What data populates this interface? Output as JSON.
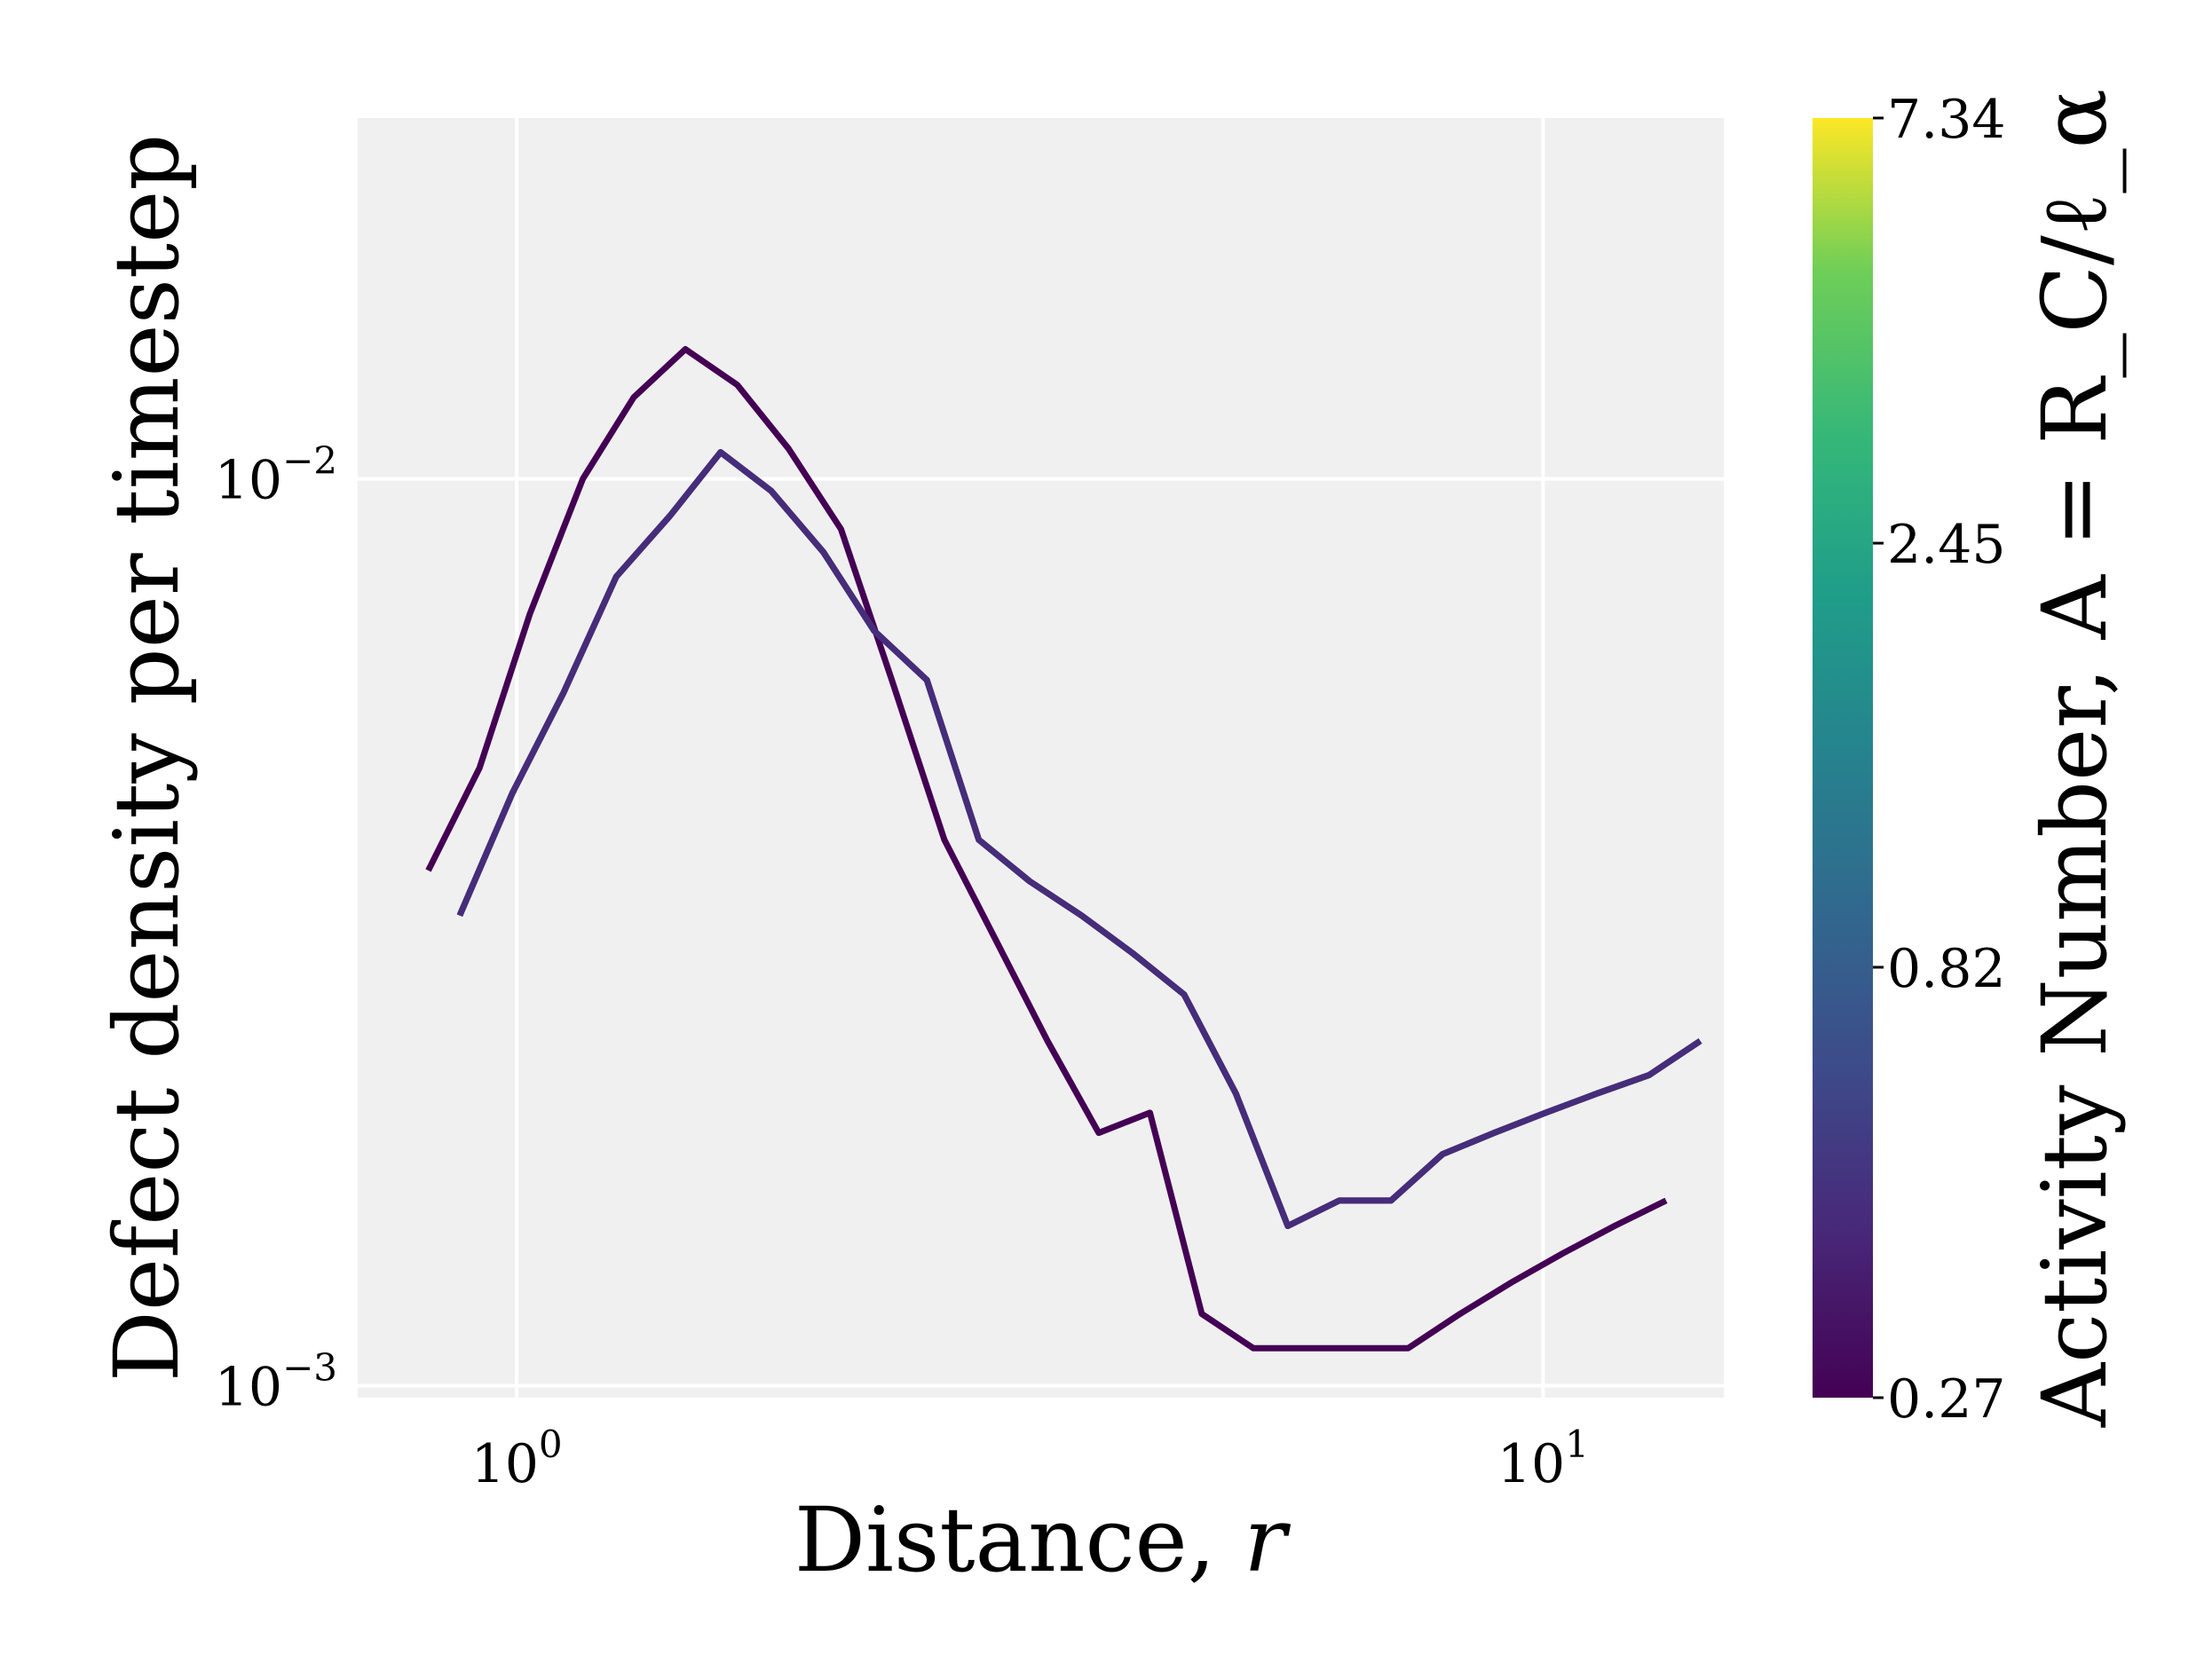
{
  "chart_data": {
    "type": "line",
    "xlabel": "Distance, r",
    "ylabel": "Defect density per timestep",
    "xscale": "log",
    "yscale": "log",
    "xlim": [
      0.7,
      15.0
    ],
    "ylim": [
      0.00097,
      0.025
    ],
    "grid": true,
    "x_ticks": [
      {
        "value": 1,
        "base": "10",
        "exp": "0"
      },
      {
        "value": 10,
        "base": "10",
        "exp": "1"
      }
    ],
    "y_ticks": [
      {
        "value": 0.001,
        "base": "10",
        "exp": "−3"
      },
      {
        "value": 0.01,
        "base": "10",
        "exp": "−2"
      }
    ],
    "colorbar": {
      "label": "Activity Number, A = R_C/ℓ_α",
      "min": 0.27,
      "max": 7.34,
      "scale": "log",
      "ticks": [
        "7.34",
        "2.45",
        "0.82",
        "0.27"
      ],
      "colormap": "viridis"
    },
    "series": [
      {
        "A": 0.27,
        "color": "#440154",
        "x": [
          0.82,
          0.92,
          1.03,
          1.16,
          1.3,
          1.46,
          1.64,
          1.84,
          2.07,
          2.32,
          2.61,
          2.93,
          3.29,
          3.69,
          4.14,
          4.65,
          5.22,
          5.86,
          6.58,
          7.39,
          8.3,
          9.32,
          10.46,
          11.74,
          13.18
        ],
        "y": [
          0.0037,
          0.0048,
          0.0071,
          0.01,
          0.0123,
          0.0139,
          0.0127,
          0.0108,
          0.0088,
          0.006,
          0.004,
          0.0031,
          0.0024,
          0.0019,
          0.002,
          0.0012,
          0.0011,
          0.0011,
          0.0011,
          0.0011,
          0.0012,
          0.0013,
          0.0014,
          0.0015,
          0.0016
        ]
      },
      {
        "A": 0.44,
        "color": "#31688e",
        "x": [
          0.88,
          0.99,
          1.11,
          1.25,
          1.41,
          1.58,
          1.77,
          1.99,
          2.23,
          2.51,
          2.82,
          3.16,
          3.55,
          3.98,
          4.47,
          5.02,
          5.64,
          6.33,
          7.11,
          7.98,
          8.96,
          10.06,
          11.29,
          12.68,
          14.23
        ],
        "y": [
          0.0033,
          0.0045,
          0.0058,
          0.0078,
          0.0091,
          0.0107,
          0.0097,
          0.0083,
          0.0068,
          0.006,
          0.004,
          0.0036,
          0.0033,
          0.003,
          0.0027,
          0.0021,
          0.0015,
          0.0016,
          0.0016,
          0.0018,
          0.0019,
          0.002,
          0.0021,
          0.0022,
          0.0024
        ]
      },
      {
        "A": 0.62,
        "color": "#3b528b",
        "x": [
          0.88,
          0.99,
          1.11,
          1.25,
          1.41,
          1.58,
          1.77,
          1.99,
          2.23,
          2.51,
          2.82,
          3.16,
          3.55,
          3.98,
          4.47,
          5.02,
          5.64,
          6.33,
          7.11,
          7.98,
          8.96,
          10.06,
          11.29,
          12.68,
          14.23
        ],
        "y": [
          0.0033,
          0.0045,
          0.0058,
          0.0078,
          0.0091,
          0.0107,
          0.0097,
          0.0083,
          0.0068,
          0.006,
          0.004,
          0.0036,
          0.0033,
          0.003,
          0.0027,
          0.0021,
          0.0015,
          0.0016,
          0.0016,
          0.0018,
          0.0019,
          0.002,
          0.0021,
          0.0022,
          0.0024
        ]
      },
      {
        "A": 0.27,
        "color": "#472c7a",
        "x": [
          0.88,
          0.99,
          1.11,
          1.25,
          1.41,
          1.58,
          1.77,
          1.99,
          2.23,
          2.51,
          2.82,
          3.16,
          3.55,
          3.98,
          4.47,
          5.02,
          5.64,
          6.33,
          7.11,
          7.98,
          8.96,
          10.06,
          11.29,
          12.68,
          14.23
        ],
        "y": [
          0.0033,
          0.0045,
          0.0058,
          0.0078,
          0.0091,
          0.0107,
          0.0097,
          0.0083,
          0.0068,
          0.006,
          0.004,
          0.0036,
          0.0033,
          0.003,
          0.0027,
          0.0021,
          0.0015,
          0.0016,
          0.0016,
          0.0018,
          0.0019,
          0.002,
          0.0021,
          0.0022,
          0.0024
        ]
      }
    ]
  }
}
